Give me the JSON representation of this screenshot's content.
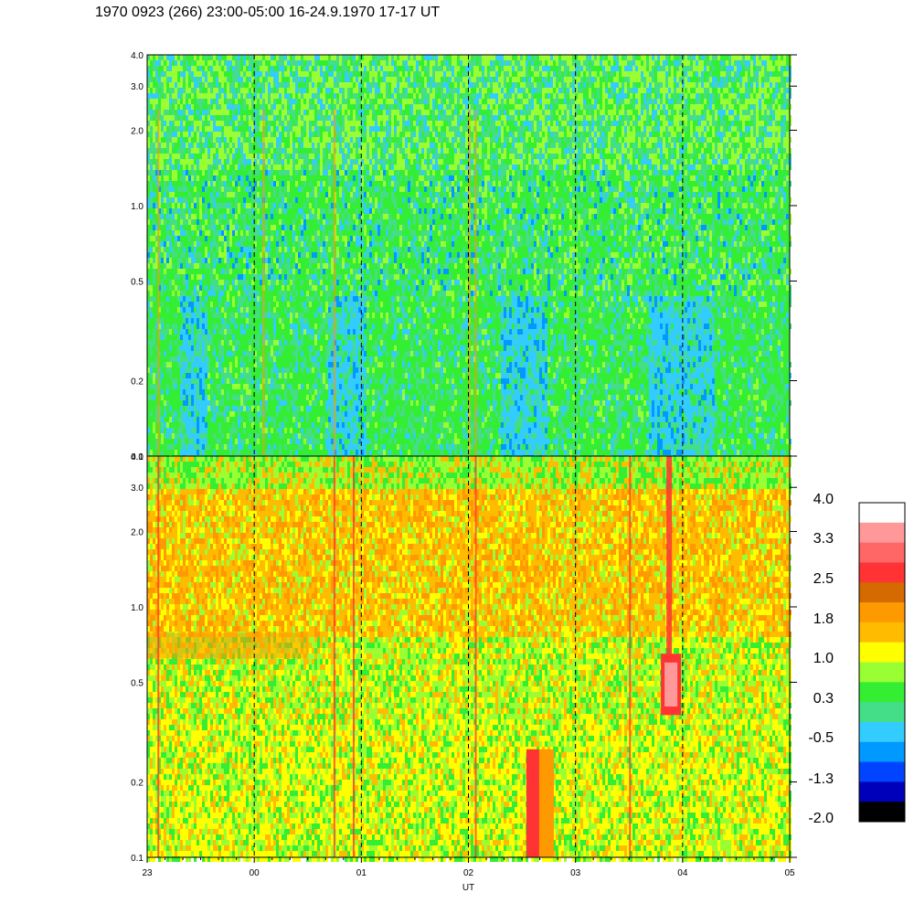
{
  "title": "1970 0923 (266) 23:00-05:00 16-24.9.1970  17-17 UT",
  "chart_data": {
    "type": "heatmap",
    "title": "1970 0923 (266) 23:00-05:00 16-24.9.1970  17-17 UT",
    "xlabel": "UT",
    "ylabel": "",
    "x_ticks": [
      "23",
      "00",
      "01",
      "02",
      "03",
      "04",
      "05"
    ],
    "x_dashed_lines_at": [
      "00",
      "01",
      "02",
      "03",
      "04"
    ],
    "y_scale": "log",
    "ylim": [
      0.1,
      4.0
    ],
    "y_ticks": [
      "0.1",
      "0.2",
      "0.5",
      "1.0",
      "2.0",
      "3.0",
      "4.0"
    ],
    "panels": [
      {
        "name": "top",
        "dominant_levels": [
          0.3,
          -0.5,
          1.0
        ]
      },
      {
        "name": "bottom",
        "dominant_levels": [
          1.0,
          1.8,
          2.5,
          3.3
        ]
      }
    ],
    "colorbar": {
      "labels": [
        "4.0",
        "3.3",
        "2.5",
        "1.8",
        "1.0",
        "0.3",
        "-0.5",
        "-1.3",
        "-2.0"
      ],
      "colors": [
        "#ffffff",
        "#ff9999",
        "#ff6666",
        "#ff3333",
        "#d46a00",
        "#ff9900",
        "#ffbb00",
        "#ffff00",
        "#99ff33",
        "#33ee33",
        "#44dd88",
        "#33ccff",
        "#0099ff",
        "#0044ff",
        "#0000bb",
        "#000000"
      ]
    }
  }
}
